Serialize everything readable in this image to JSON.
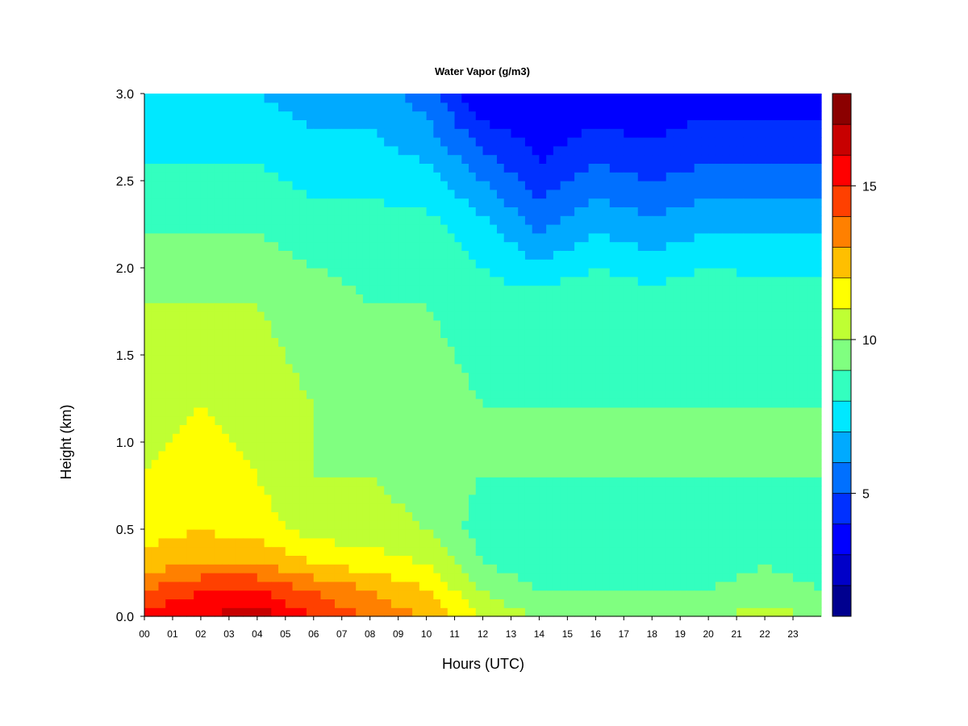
{
  "chart_data": {
    "type": "heatmap",
    "title": "Water Vapor (g/m3)",
    "xlabel": "Hours (UTC)",
    "ylabel": "Height (km)",
    "xlim": [
      0,
      24
    ],
    "ylim": [
      0.0,
      3.0
    ],
    "x_ticks": [
      "00",
      "01",
      "02",
      "03",
      "04",
      "05",
      "06",
      "07",
      "08",
      "09",
      "10",
      "11",
      "12",
      "13",
      "14",
      "15",
      "16",
      "17",
      "18",
      "19",
      "20",
      "21",
      "22",
      "23"
    ],
    "y_ticks": [
      "0.0",
      "0.5",
      "1.0",
      "1.5",
      "2.0",
      "2.5",
      "3.0"
    ],
    "colorbar": {
      "range": [
        1,
        18
      ],
      "levels": [
        1,
        2,
        3,
        4,
        5,
        6,
        7,
        8,
        9,
        10,
        11,
        12,
        13,
        14,
        15,
        16,
        17,
        18
      ],
      "ticks": [
        "5",
        "10",
        "15"
      ],
      "colors": [
        "#00008f",
        "#0000c8",
        "#0000ff",
        "#0030ff",
        "#0070ff",
        "#00aaff",
        "#00e8ff",
        "#33ffbf",
        "#80ff80",
        "#bfff33",
        "#ffff00",
        "#ffbf00",
        "#ff8000",
        "#ff4000",
        "#ff0000",
        "#c80000",
        "#8b0000"
      ]
    },
    "profiles": [
      {
        "hour": 0,
        "height_km": [
          0.0,
          0.05,
          0.15,
          0.3,
          0.5,
          0.8,
          1.2,
          1.8,
          2.2,
          2.6,
          3.0
        ],
        "water_vapor": [
          16,
          15,
          14,
          12.5,
          11.5,
          11,
          10.5,
          10,
          9,
          8,
          7.5
        ]
      },
      {
        "hour": 2,
        "height_km": [
          0.0,
          0.05,
          0.15,
          0.3,
          0.5,
          0.8,
          1.2,
          1.8,
          2.2,
          2.6,
          3.0
        ],
        "water_vapor": [
          16,
          15.5,
          15,
          13,
          12,
          11.5,
          11,
          10,
          9,
          8,
          7.5
        ]
      },
      {
        "hour": 4,
        "height_km": [
          0.0,
          0.05,
          0.15,
          0.3,
          0.5,
          0.8,
          1.2,
          1.8,
          2.2,
          2.6,
          3.0
        ],
        "water_vapor": [
          17,
          16,
          15,
          13,
          11.5,
          11,
          10.5,
          10,
          9,
          8,
          7
        ]
      },
      {
        "hour": 6,
        "height_km": [
          0.0,
          0.05,
          0.15,
          0.3,
          0.5,
          0.8,
          1.2,
          1.8,
          2.2,
          2.6,
          3.0
        ],
        "water_vapor": [
          15,
          14.5,
          14,
          12,
          10.5,
          10,
          10,
          9.5,
          8.5,
          7.5,
          6.5
        ]
      },
      {
        "hour": 8,
        "height_km": [
          0.0,
          0.05,
          0.15,
          0.3,
          0.5,
          0.8,
          1.2,
          1.8,
          2.2,
          2.6,
          3.0
        ],
        "water_vapor": [
          14,
          13.5,
          13,
          11.5,
          10.5,
          10,
          9.5,
          9,
          8.5,
          7.5,
          6.5
        ]
      },
      {
        "hour": 10,
        "height_km": [
          0.0,
          0.05,
          0.15,
          0.3,
          0.5,
          0.8,
          1.2,
          1.8,
          2.2,
          2.6,
          3.0
        ],
        "water_vapor": [
          13,
          12.5,
          12,
          11,
          10,
          9.5,
          9.5,
          9,
          8.5,
          7,
          5.5
        ]
      },
      {
        "hour": 12,
        "height_km": [
          0.0,
          0.05,
          0.15,
          0.3,
          0.5,
          0.8,
          1.2,
          1.8,
          2.2,
          2.6,
          3.0
        ],
        "water_vapor": [
          11,
          10.5,
          10,
          9,
          8.5,
          9,
          9,
          8.5,
          7.5,
          5.5,
          3
        ]
      },
      {
        "hour": 14,
        "height_km": [
          0.0,
          0.05,
          0.15,
          0.3,
          0.5,
          0.8,
          1.2,
          1.8,
          2.2,
          2.6,
          3.0
        ],
        "water_vapor": [
          10,
          9.5,
          9,
          8.5,
          8.5,
          9,
          9,
          8.5,
          6,
          4,
          3
        ]
      },
      {
        "hour": 16,
        "height_km": [
          0.0,
          0.05,
          0.15,
          0.3,
          0.5,
          0.8,
          1.2,
          1.8,
          2.2,
          2.6,
          3.0
        ],
        "water_vapor": [
          10,
          9.5,
          9,
          8.5,
          8.5,
          9,
          9,
          9,
          7,
          5,
          3
        ]
      },
      {
        "hour": 18,
        "height_km": [
          0.0,
          0.05,
          0.15,
          0.3,
          0.5,
          0.8,
          1.2,
          1.8,
          2.2,
          2.6,
          3.0
        ],
        "water_vapor": [
          10,
          9.5,
          9,
          8.5,
          8.5,
          9,
          9,
          8.5,
          6.5,
          4.5,
          3
        ]
      },
      {
        "hour": 20,
        "height_km": [
          0.0,
          0.05,
          0.15,
          0.3,
          0.5,
          0.8,
          1.2,
          1.8,
          2.2,
          2.6,
          3.0
        ],
        "water_vapor": [
          10,
          9.5,
          9,
          8.5,
          8.5,
          9,
          9,
          9,
          7,
          5,
          3.5
        ]
      },
      {
        "hour": 22,
        "height_km": [
          0.0,
          0.05,
          0.15,
          0.3,
          0.5,
          0.8,
          1.2,
          1.8,
          2.2,
          2.6,
          3.0
        ],
        "water_vapor": [
          10.5,
          10,
          9.5,
          9,
          8.5,
          9,
          9,
          8.5,
          7,
          5,
          3.5
        ]
      },
      {
        "hour": 24,
        "height_km": [
          0.0,
          0.05,
          0.15,
          0.3,
          0.5,
          0.8,
          1.2,
          1.8,
          2.2,
          2.6,
          3.0
        ],
        "water_vapor": [
          10,
          9.5,
          9,
          8.5,
          8.5,
          9,
          9,
          8.5,
          7,
          5,
          3.5
        ]
      }
    ]
  }
}
